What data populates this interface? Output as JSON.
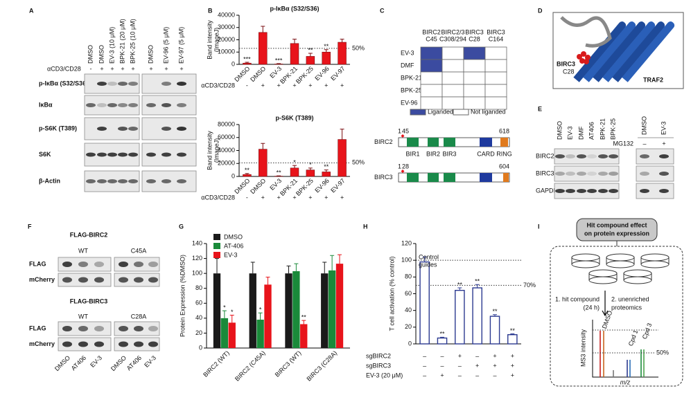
{
  "panels": {
    "letters": [
      "A",
      "B",
      "C",
      "D",
      "E",
      "F",
      "G",
      "H",
      "I"
    ],
    "A": {
      "lanes": [
        "DMSO",
        "DMSO",
        "EV-3 (10 μM)",
        "BPK-21 (20 μM)",
        "BPK-25 (10 μM)",
        "DMSO",
        "EV-96 (5 μM)",
        "EV-97 (5 μM)"
      ],
      "stim_label": "αCD3/CD28",
      "stim": [
        "-",
        "+",
        "+",
        "+",
        "+",
        "+",
        "+",
        "+"
      ],
      "rows": [
        "p-IκBα (S32/S36)",
        "IκBα",
        "p-S6K (T389)",
        "S6K",
        "β-Actin"
      ]
    },
    "C": {
      "columns": [
        {
          "protein": "BIRC2",
          "site": "C45"
        },
        {
          "protein": "BIRC2/3",
          "site": "C308/294"
        },
        {
          "protein": "BIRC3",
          "site": "C28"
        },
        {
          "protein": "BIRC3",
          "site": "C164"
        }
      ],
      "rows": [
        "EV-3",
        "DMF",
        "BPK-21",
        "BPK-25",
        "EV-96"
      ],
      "liganded": [
        [
          true,
          false,
          true,
          false
        ],
        [
          true,
          false,
          false,
          false
        ],
        [
          false,
          false,
          false,
          false
        ],
        [
          false,
          false,
          false,
          false
        ],
        [
          false,
          false,
          false,
          false
        ]
      ],
      "liganded_color": "#3b4ba0",
      "legend": [
        "Liganded",
        "Not liganded"
      ],
      "domains": [
        {
          "name": "BIRC2",
          "start": 1,
          "site": 45,
          "end": 618,
          "labels": [
            "BIR1",
            "BIR2",
            "BIR3",
            "CARD",
            "RING"
          ]
        },
        {
          "name": "BIRC3",
          "start": 1,
          "site": 28,
          "end": 604
        }
      ]
    },
    "D": {
      "labels": [
        "BIRC3",
        "C28",
        "TRAF2"
      ]
    },
    "E": {
      "lanes": [
        "DMSO",
        "EV-3",
        "DMF",
        "AT406",
        "BPK-21",
        "BPK-25"
      ],
      "lanes2": [
        "DMSO",
        "EV-3"
      ],
      "mg132_label": "MG132",
      "mg132": [
        "–",
        "+"
      ],
      "rows": [
        "BIRC2",
        "BIRC3",
        "GAPDH"
      ]
    },
    "F": {
      "blocks": [
        {
          "title": "FLAG-BIRC2",
          "groups": [
            "WT",
            "C45A"
          ],
          "rows": [
            "FLAG",
            "mCherry"
          ]
        },
        {
          "title": "FLAG-BIRC3",
          "groups": [
            "WT",
            "C28A"
          ],
          "rows": [
            "FLAG",
            "mCherry"
          ]
        }
      ],
      "lanes": [
        "DMSO",
        "AT406",
        "EV-3",
        "DMSO",
        "AT406",
        "EV-3"
      ]
    },
    "I": {
      "header": [
        "Hit compound effect",
        "on protein expression"
      ],
      "step1": [
        "1. hit compound",
        "(24 h)"
      ],
      "step2": [
        "2. unenriched",
        "proteomics"
      ],
      "ylabel": "MS3 intensity",
      "xlabel": "m/z",
      "peaks": [
        "DMSO",
        "Cpd 1",
        "Cpd 3"
      ],
      "ref_label": "50%"
    }
  },
  "chart_data": [
    {
      "type": "bar",
      "title": "p-IκBα (S32/S36)",
      "ylabel": [
        "Band intensity",
        "(ImageJ)"
      ],
      "categories": [
        "DMSO",
        "DMSO",
        "EV-3",
        "BPK-21",
        "BPK-25",
        "EV-96",
        "EV-97"
      ],
      "values": [
        1000,
        26000,
        300,
        17000,
        6500,
        10000,
        18000
      ],
      "errors": [
        700,
        5000,
        300,
        3500,
        2500,
        2000,
        2500
      ],
      "annotations": [
        "***",
        null,
        "***",
        null,
        "**",
        "**",
        null
      ],
      "color": "#e8141b",
      "ylim": [
        0,
        40000
      ],
      "yticks": [
        0,
        10000,
        20000,
        30000,
        40000
      ],
      "ref_lines": [
        13000
      ],
      "ref_label": "50%",
      "stim_label": "αCD3/CD28",
      "stim": [
        "-",
        "+",
        "+",
        "+",
        "+",
        "+",
        "+"
      ]
    },
    {
      "type": "bar",
      "title": "p-S6K (T389)",
      "ylabel": [
        "Band intensity",
        "(ImageJ)"
      ],
      "categories": [
        "DMSO",
        "DMSO",
        "EV-3",
        "BPK-21",
        "BPK-25",
        "EV-96",
        "EV-97"
      ],
      "values": [
        3000,
        42000,
        500,
        13000,
        10000,
        7000,
        57000
      ],
      "errors": [
        1500,
        9000,
        500,
        4000,
        3000,
        3000,
        16000
      ],
      "annotations": [
        "**",
        null,
        "**",
        "*",
        "*",
        "**",
        null
      ],
      "color": "#e8141b",
      "ylim": [
        0,
        80000
      ],
      "yticks": [
        0,
        20000,
        40000,
        60000,
        80000
      ],
      "ref_lines": [
        21000
      ],
      "ref_label": "50%",
      "stim_label": "αCD3/CD28",
      "stim": [
        "-",
        "+",
        "+",
        "+",
        "+",
        "+",
        "+"
      ]
    },
    {
      "type": "grouped_bar",
      "ylabel": "Protein Expression (%DMSO)",
      "categories": [
        "BIRC2 (WT)",
        "BIRC2 (C45A)",
        "BIRC3 (WT)",
        "BIRC3 (C28A)"
      ],
      "series": [
        {
          "name": "DMSO",
          "color": "#1a1a1a",
          "values": [
            100,
            100,
            100,
            100
          ],
          "errors": [
            20,
            15,
            10,
            15
          ],
          "annotations": [
            null,
            null,
            null,
            null
          ]
        },
        {
          "name": "AT-406",
          "color": "#1a8a3a",
          "values": [
            40,
            38,
            103,
            104
          ],
          "errors": [
            10,
            9,
            10,
            20
          ],
          "annotations": [
            "*",
            "*",
            null,
            null
          ]
        },
        {
          "name": "EV-3",
          "color": "#e8141b",
          "values": [
            34,
            85,
            32,
            113
          ],
          "errors": [
            10,
            10,
            5,
            12
          ],
          "annotations": [
            "*",
            null,
            "**",
            null
          ]
        }
      ],
      "ylim": [
        0,
        140
      ],
      "yticks": [
        0,
        20,
        40,
        60,
        80,
        100,
        120,
        140
      ]
    },
    {
      "type": "bar",
      "ylabel": "T cell activation (% control)",
      "bar_style": "outline",
      "color": "#2b3990",
      "values": [
        98,
        7,
        64,
        67,
        33,
        11
      ],
      "errors": [
        6,
        1,
        3,
        4,
        2,
        1
      ],
      "annotations": [
        null,
        "**",
        "**",
        "**",
        "**",
        "**"
      ],
      "ylim": [
        0,
        120
      ],
      "yticks": [
        0,
        20,
        40,
        60,
        80,
        100,
        120
      ],
      "ref_lines": [
        100,
        70
      ],
      "ref_label": "70%",
      "note": [
        "Control",
        "guides"
      ],
      "rows": [
        {
          "label": "sgBIRC2",
          "signs": [
            "–",
            "–",
            "+",
            "–",
            "+",
            "+"
          ]
        },
        {
          "label": "sgBIRC3",
          "signs": [
            "–",
            "–",
            "–",
            "+",
            "+",
            "+"
          ]
        },
        {
          "label": "EV-3 (20 μM)",
          "signs": [
            "–",
            "+",
            "–",
            "–",
            "–",
            "+"
          ]
        }
      ]
    }
  ]
}
